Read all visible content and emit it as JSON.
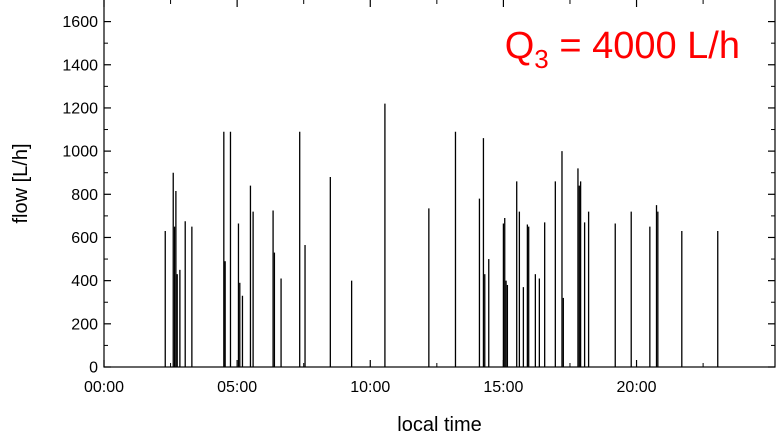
{
  "chart_data": {
    "type": "bar",
    "title": "",
    "xlabel": "local time",
    "ylabel": "flow [L/h]",
    "x_unit": "hours",
    "xlim": [
      0,
      25.2
    ],
    "ylim": [
      0,
      1700
    ],
    "xticks": [
      {
        "value": 0,
        "label": "00:00"
      },
      {
        "value": 5,
        "label": "05:00"
      },
      {
        "value": 10,
        "label": "10:00"
      },
      {
        "value": 15,
        "label": "15:00"
      },
      {
        "value": 20,
        "label": "20:00"
      }
    ],
    "yticks": [
      0,
      200,
      400,
      600,
      800,
      1000,
      1200,
      1400,
      1600
    ],
    "grid": false,
    "annotation": {
      "prefix": "Q",
      "subscript": "3",
      "suffix": " = 4000 L/h",
      "color": "#ff0000"
    },
    "series": [
      {
        "x": [
          2.3,
          2.6,
          2.65,
          2.7,
          2.75,
          2.85,
          3.05,
          3.3,
          4.5,
          4.55,
          4.75,
          5.05,
          5.1,
          5.2,
          5.5,
          5.6,
          6.35,
          6.4,
          6.65,
          7.35,
          7.55,
          8.5,
          9.3,
          10.55,
          12.2,
          13.2,
          14.1,
          14.25,
          14.3,
          14.45,
          15.0,
          15.05,
          15.1,
          15.15,
          15.5,
          15.6,
          15.75,
          15.9,
          15.95,
          16.2,
          16.35,
          16.55,
          16.95,
          17.2,
          17.25,
          17.8,
          17.85,
          17.9,
          18.05,
          18.2,
          19.2,
          19.8,
          20.5,
          20.75,
          20.8,
          21.7,
          23.05
        ],
        "values": [
          630,
          900,
          650,
          815,
          430,
          450,
          675,
          650,
          1090,
          490,
          1090,
          665,
          390,
          330,
          840,
          720,
          725,
          530,
          410,
          1090,
          565,
          880,
          400,
          1220,
          735,
          1090,
          780,
          1060,
          430,
          500,
          665,
          690,
          400,
          380,
          860,
          720,
          370,
          660,
          650,
          430,
          410,
          670,
          860,
          1000,
          320,
          920,
          840,
          860,
          670,
          720,
          665,
          720,
          650,
          750,
          720,
          630,
          630
        ],
        "color": "#000000"
      }
    ]
  }
}
